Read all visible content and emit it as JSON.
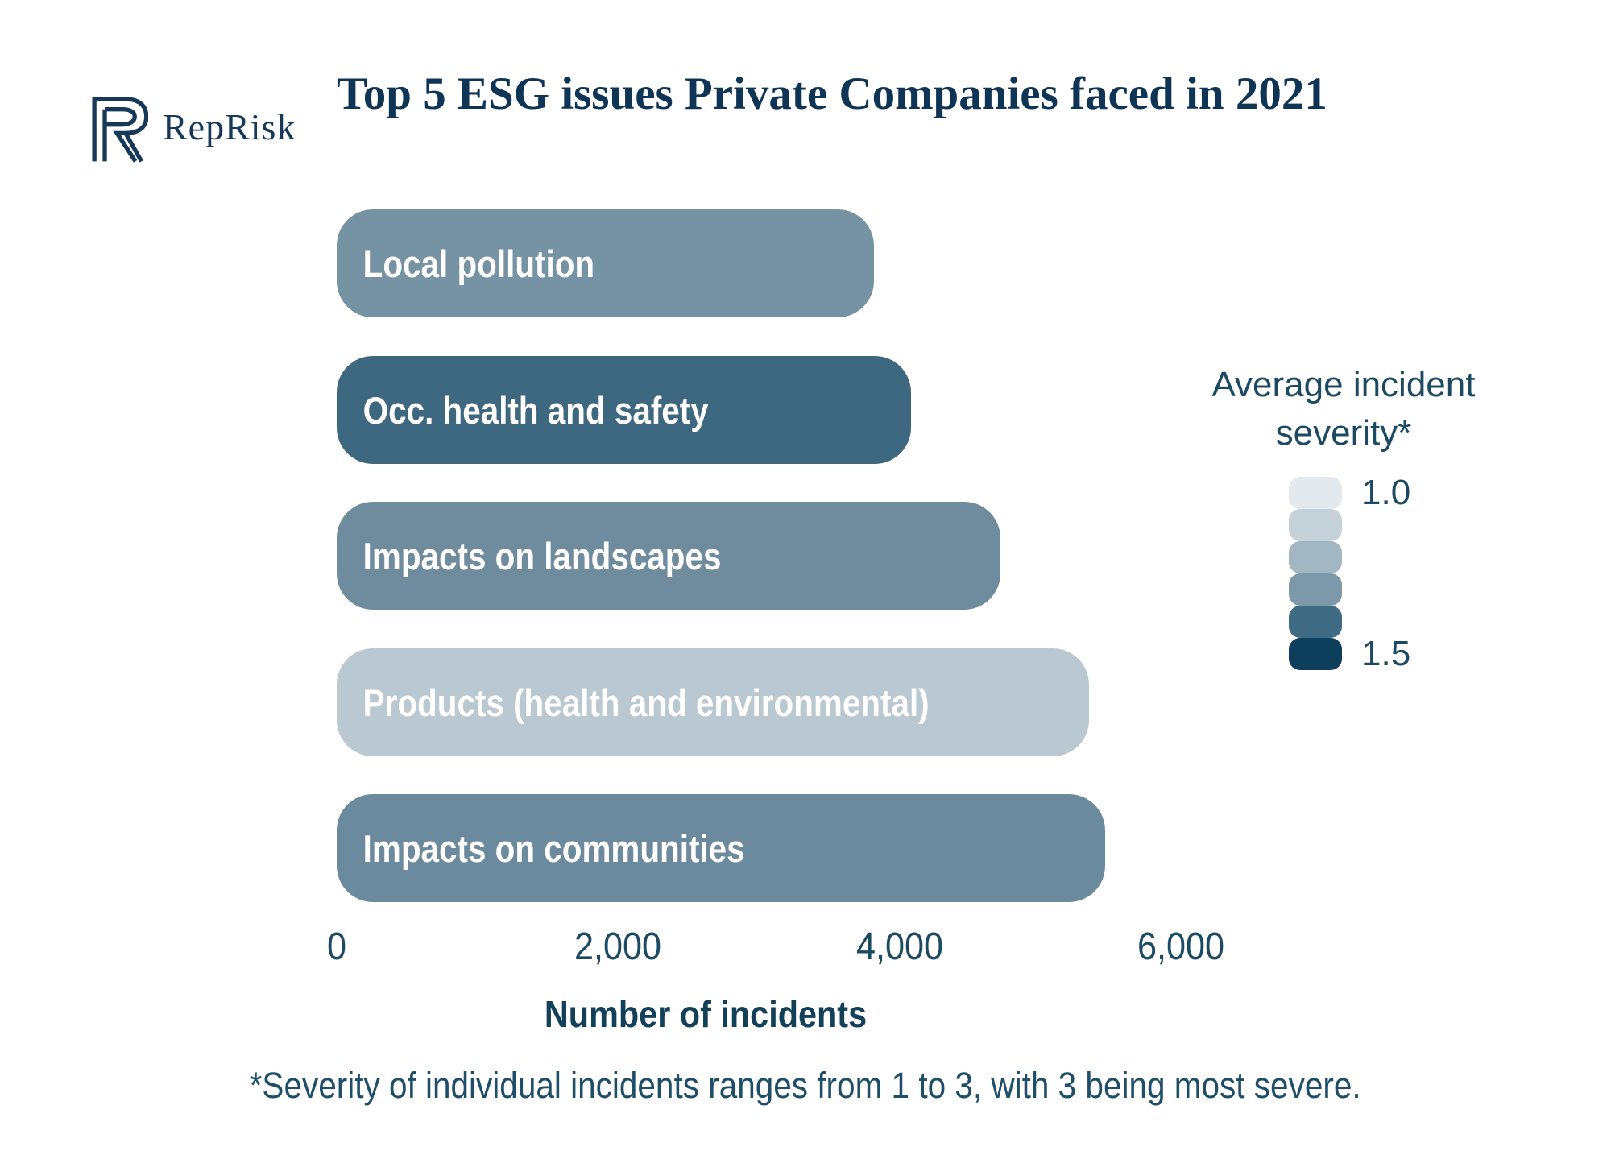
{
  "brand": {
    "name": "RepRisk",
    "logo_icon": "reprisk-r-mark",
    "color": "#16395a"
  },
  "title": "Top 5 ESG issues Private Companies faced in 2021",
  "chart_data": {
    "type": "bar",
    "orientation": "horizontal",
    "title": "Top 5 ESG issues Private Companies faced in 2021",
    "categories": [
      "Local pollution",
      "Occ. health and safety",
      "Impacts on landscapes",
      "Products (health and environmental)",
      "Impacts on communities"
    ],
    "values": [
      3820,
      4080,
      4720,
      5350,
      5460
    ],
    "bar_colors": [
      "#7693a4",
      "#3d687f",
      "#6f8c9f",
      "#b9c8d1",
      "#6b8a9d"
    ],
    "xlabel": "Number of incidents",
    "ylabel": "",
    "xlim": [
      0,
      6000
    ],
    "x_ticks": [
      0,
      2000,
      4000,
      6000
    ],
    "x_tick_labels": [
      "0",
      "2,000",
      "4,000",
      "6,000"
    ],
    "grid": false,
    "legend": {
      "position": "right",
      "title": "Average incident severity*",
      "min_label": "1.0",
      "max_label": "1.5",
      "swatches": [
        "#e3e9ed",
        "#c5d2d9",
        "#a2b7c1",
        "#7d99a9",
        "#3f6b85",
        "#0d3e5c"
      ]
    },
    "footnote": "*Severity of individual incidents ranges from 1 to 3, with 3 being most severe."
  },
  "colors": {
    "background": "#ffffff",
    "title_text": "#0e3456",
    "axis_text": "#1d4a63",
    "bar_label_text": "#ffffff"
  }
}
